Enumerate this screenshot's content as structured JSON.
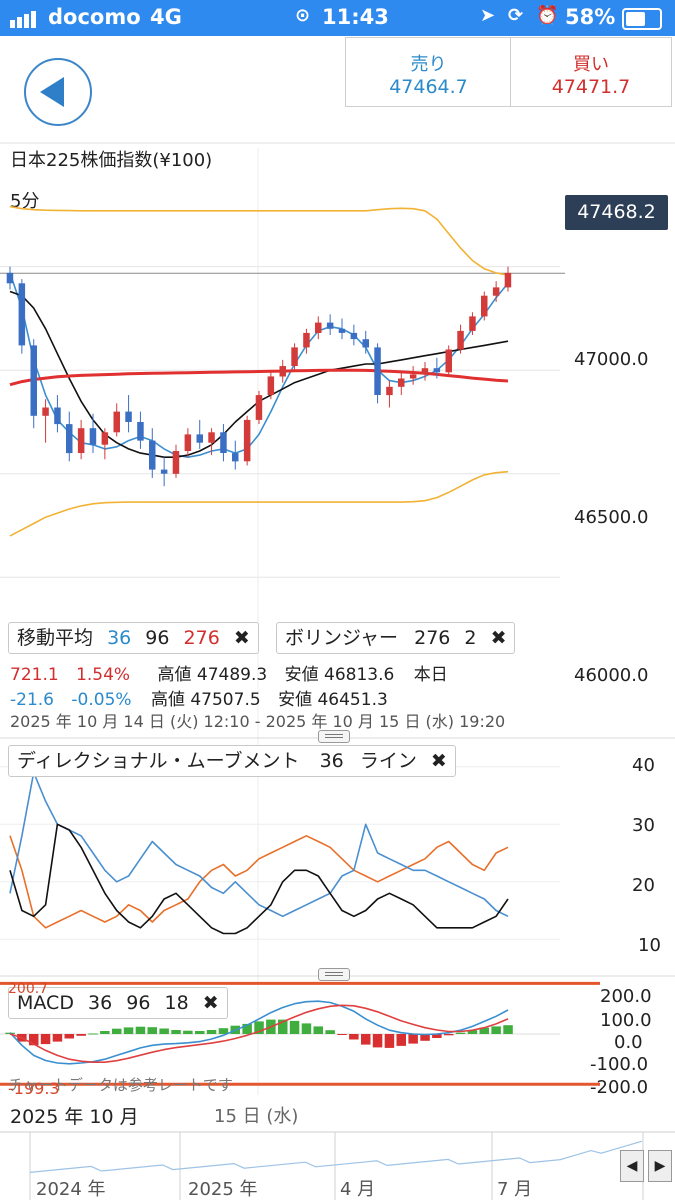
{
  "status_bar": {
    "carrier": "docomo",
    "network": "4G",
    "time": "11:43",
    "battery": "58%",
    "battery_level": 0.58
  },
  "quote": {
    "sell_label": "売り",
    "sell_value": "47464.7",
    "buy_label": "買い",
    "buy_value": "47471.7"
  },
  "chart_title": "日本225株価指数(¥100)",
  "timeframe": "5分",
  "current_price": "47468.2",
  "price_axis": {
    "labels": [
      "47000.0",
      "46500.0",
      "46000.0"
    ],
    "hidden_label": "47500.0"
  },
  "indicators": {
    "moving_average": {
      "label": "移動平均",
      "p1": "36",
      "p2": "96",
      "p3": "276"
    },
    "bollinger": {
      "label": "ボリンジャー",
      "period": "276",
      "sigma": "2"
    },
    "close_symbol": "✖"
  },
  "info_rows": [
    {
      "change": "721.1",
      "pct": "1.54%",
      "high_label": "高値",
      "high": "47489.3",
      "low_label": "安値",
      "low": "46813.6",
      "tag": "本日"
    },
    {
      "change": "-21.6",
      "pct": "-0.05%",
      "high_label": "高値",
      "high": "47507.5",
      "low_label": "安値",
      "low": "46451.3"
    }
  ],
  "range_text": "2025 年 10 月 14 日 (火) 12:10 - 2025 年 10 月 15 日 (水) 19:20",
  "dmi": {
    "label": "ディレクショナル・ムーブメント",
    "period": "36",
    "mode": "ライン",
    "axis": [
      "40",
      "30",
      "20",
      "10"
    ]
  },
  "macd": {
    "label": "MACD",
    "fast": "36",
    "slow": "96",
    "signal": "18",
    "axis": [
      "200.0",
      "100.0",
      "0.0",
      "-100.0",
      "-200.0"
    ],
    "upper_ref": "200.7",
    "lower_ref": "-199.3",
    "watermark": "チャートデータは参考レートです"
  },
  "time_axis": {
    "month": "2025 年 10 月",
    "day": "15 日 (水)"
  },
  "navigator": {
    "labels": [
      "2024 年",
      "2025 年",
      "4 月",
      "7 月"
    ],
    "prev": "◀",
    "next": "▶"
  },
  "colors": {
    "accent": "#2f8af0",
    "sell": "#2b8acb",
    "buy": "#d32e2e",
    "ma_short": "#3a8fd0",
    "ma_mid": "#111111",
    "ma_long": "#e03030",
    "bollinger": "#f2b233",
    "candle_up": "#d33a3a",
    "candle_down": "#3a6fc4",
    "dmi_plus": "#e8702a",
    "dmi_minus": "#4a8fd0",
    "adx": "#111111",
    "macd_line": "#3a8fd0",
    "signal_line": "#e04040",
    "hist_pos": "#3fae3f",
    "hist_neg": "#d83030"
  },
  "chart_data": [
    {
      "type": "candlestick",
      "title": "日本225株価指数(¥100)",
      "timeframe": "5分",
      "ylim": [
        45900,
        47880
      ],
      "yticks": [
        46000,
        46500,
        47000,
        47500
      ],
      "current_price": 47468.2,
      "candles": [
        [
          47470,
          47500,
          47390,
          47420
        ],
        [
          47420,
          47440,
          47080,
          47120
        ],
        [
          47120,
          47150,
          46720,
          46780
        ],
        [
          46780,
          46860,
          46650,
          46820
        ],
        [
          46820,
          46880,
          46700,
          46740
        ],
        [
          46740,
          46800,
          46560,
          46600
        ],
        [
          46600,
          46760,
          46570,
          46720
        ],
        [
          46720,
          46790,
          46600,
          46640
        ],
        [
          46640,
          46720,
          46570,
          46700
        ],
        [
          46700,
          46840,
          46680,
          46800
        ],
        [
          46800,
          46880,
          46700,
          46750
        ],
        [
          46750,
          46800,
          46620,
          46660
        ],
        [
          46660,
          46720,
          46480,
          46520
        ],
        [
          46520,
          46580,
          46440,
          46500
        ],
        [
          46500,
          46640,
          46480,
          46610
        ],
        [
          46610,
          46720,
          46580,
          46690
        ],
        [
          46690,
          46760,
          46620,
          46650
        ],
        [
          46650,
          46720,
          46590,
          46700
        ],
        [
          46700,
          46740,
          46560,
          46600
        ],
        [
          46600,
          46660,
          46520,
          46560
        ],
        [
          46560,
          46780,
          46540,
          46760
        ],
        [
          46760,
          46900,
          46740,
          46880
        ],
        [
          46880,
          46990,
          46860,
          46970
        ],
        [
          46970,
          47050,
          46940,
          47020
        ],
        [
          47020,
          47130,
          47000,
          47110
        ],
        [
          47110,
          47200,
          47080,
          47180
        ],
        [
          47180,
          47260,
          47150,
          47230
        ],
        [
          47230,
          47270,
          47170,
          47200
        ],
        [
          47200,
          47250,
          47150,
          47180
        ],
        [
          47180,
          47220,
          47120,
          47150
        ],
        [
          47150,
          47190,
          47080,
          47110
        ],
        [
          47110,
          47130,
          46840,
          46880
        ],
        [
          46880,
          46950,
          46820,
          46920
        ],
        [
          46920,
          46990,
          46880,
          46960
        ],
        [
          46960,
          47020,
          46930,
          46980
        ],
        [
          46980,
          47040,
          46950,
          47010
        ],
        [
          47010,
          47060,
          46960,
          46990
        ],
        [
          46990,
          47120,
          46980,
          47100
        ],
        [
          47100,
          47220,
          47080,
          47190
        ],
        [
          47190,
          47280,
          47170,
          47260
        ],
        [
          47260,
          47380,
          47240,
          47360
        ],
        [
          47360,
          47430,
          47330,
          47400
        ],
        [
          47400,
          47500,
          47380,
          47470
        ]
      ],
      "series": [
        {
          "name": "36",
          "values": [
            47470,
            47300,
            47050,
            46880,
            46760,
            46700,
            46650,
            46640,
            46620,
            46630,
            46660,
            46680,
            46660,
            46620,
            46590,
            46580,
            46590,
            46610,
            46620,
            46600,
            46620,
            46690,
            46800,
            46920,
            47030,
            47120,
            47190,
            47210,
            47200,
            47170,
            47110,
            47000,
            46950,
            46940,
            46950,
            46970,
            47000,
            47050,
            47120,
            47200,
            47270,
            47350,
            47420
          ]
        },
        {
          "name": "96",
          "values": [
            47380,
            47360,
            47300,
            47200,
            47080,
            46960,
            46850,
            46760,
            46690,
            46650,
            46620,
            46600,
            46590,
            46580,
            46580,
            46590,
            46610,
            46640,
            46690,
            46750,
            46800,
            46850,
            46880,
            46910,
            46940,
            46960,
            46980,
            47000,
            47010,
            47020,
            47030,
            47030,
            47040,
            47050,
            47060,
            47070,
            47080,
            47090,
            47100,
            47110,
            47120,
            47130,
            47140
          ]
        },
        {
          "name": "276",
          "values": [
            46930,
            46945,
            46955,
            46962,
            46968,
            46972,
            46975,
            46977,
            46979,
            46981,
            46983,
            46984,
            46985,
            46986,
            46987,
            46988,
            46989,
            46990,
            46991,
            46992,
            46993,
            46994,
            46995,
            46996,
            46997,
            46998,
            46999,
            47000,
            47000,
            47000,
            46999,
            46997,
            46995,
            46992,
            46989,
            46985,
            46980,
            46974,
            46968,
            46962,
            46957,
            46952,
            46948
          ]
        },
        {
          "name": "BB upper",
          "values": [
            47790,
            47780,
            47775,
            47773,
            47772,
            47771,
            47770,
            47770,
            47770,
            47770,
            47770,
            47770,
            47770,
            47770,
            47770,
            47770,
            47770,
            47770,
            47770,
            47770,
            47770,
            47770,
            47770,
            47770,
            47770,
            47770,
            47770,
            47770,
            47770,
            47770,
            47770,
            47775,
            47780,
            47782,
            47780,
            47770,
            47730,
            47660,
            47590,
            47530,
            47490,
            47470,
            47460
          ]
        },
        {
          "name": "BB lower",
          "values": [
            46200,
            46230,
            46260,
            46290,
            46310,
            46330,
            46345,
            46355,
            46360,
            46362,
            46363,
            46363,
            46363,
            46363,
            46363,
            46363,
            46363,
            46363,
            46363,
            46363,
            46363,
            46363,
            46363,
            46363,
            46363,
            46363,
            46363,
            46363,
            46363,
            46363,
            46363,
            46363,
            46363,
            46363,
            46365,
            46370,
            46385,
            46410,
            46440,
            46470,
            46495,
            46505,
            46510
          ]
        }
      ]
    },
    {
      "type": "line",
      "title": "ディレクショナル・ムーブメント",
      "ylim": [
        5,
        45
      ],
      "series": [
        {
          "name": "+DI",
          "values": [
            28,
            22,
            14,
            12,
            13,
            14,
            15,
            14,
            13,
            14,
            16,
            15,
            13,
            15,
            16,
            17,
            20,
            22,
            23,
            21,
            22,
            24,
            25,
            26,
            27,
            28,
            27,
            26,
            24,
            22,
            21,
            20,
            21,
            22,
            23,
            24,
            26,
            27,
            25,
            23,
            22,
            25,
            26
          ]
        },
        {
          "name": "-DI",
          "values": [
            18,
            28,
            39,
            34,
            30,
            29,
            28,
            25,
            22,
            20,
            21,
            24,
            27,
            25,
            23,
            22,
            21,
            19,
            18,
            20,
            18,
            16,
            15,
            14,
            15,
            16,
            17,
            18,
            21,
            22,
            30,
            25,
            24,
            23,
            22,
            22,
            21,
            20,
            19,
            18,
            17,
            15,
            14
          ]
        },
        {
          "name": "ADX",
          "values": [
            22,
            15,
            14,
            16,
            30,
            29,
            26,
            22,
            18,
            15,
            13,
            12,
            14,
            17,
            18,
            16,
            14,
            12,
            11,
            11,
            12,
            14,
            16,
            20,
            22,
            22,
            21,
            18,
            15,
            14,
            15,
            17,
            18,
            17,
            16,
            14,
            12,
            12,
            12,
            12,
            13,
            14,
            17
          ]
        }
      ]
    },
    {
      "type": "line",
      "title": "MACD",
      "ylim": [
        -230,
        230
      ],
      "series": [
        {
          "name": "MACD",
          "values": [
            5,
            -45,
            -85,
            -105,
            -115,
            -118,
            -115,
            -110,
            -100,
            -85,
            -70,
            -55,
            -45,
            -40,
            -38,
            -35,
            -30,
            -20,
            -5,
            15,
            35,
            60,
            85,
            105,
            120,
            128,
            130,
            125,
            110,
            90,
            60,
            35,
            15,
            5,
            0,
            -2,
            0,
            5,
            15,
            30,
            50,
            70,
            95
          ]
        },
        {
          "name": "Signal",
          "values": [
            0,
            -15,
            -40,
            -65,
            -85,
            -100,
            -108,
            -112,
            -112,
            -106,
            -96,
            -84,
            -72,
            -62,
            -54,
            -48,
            -42,
            -36,
            -28,
            -18,
            -5,
            10,
            28,
            48,
            68,
            86,
            100,
            110,
            114,
            112,
            102,
            88,
            70,
            52,
            38,
            25,
            16,
            10,
            10,
            15,
            25,
            40,
            60
          ]
        }
      ],
      "reference_lines": [
        200.7,
        -199.3
      ]
    }
  ]
}
